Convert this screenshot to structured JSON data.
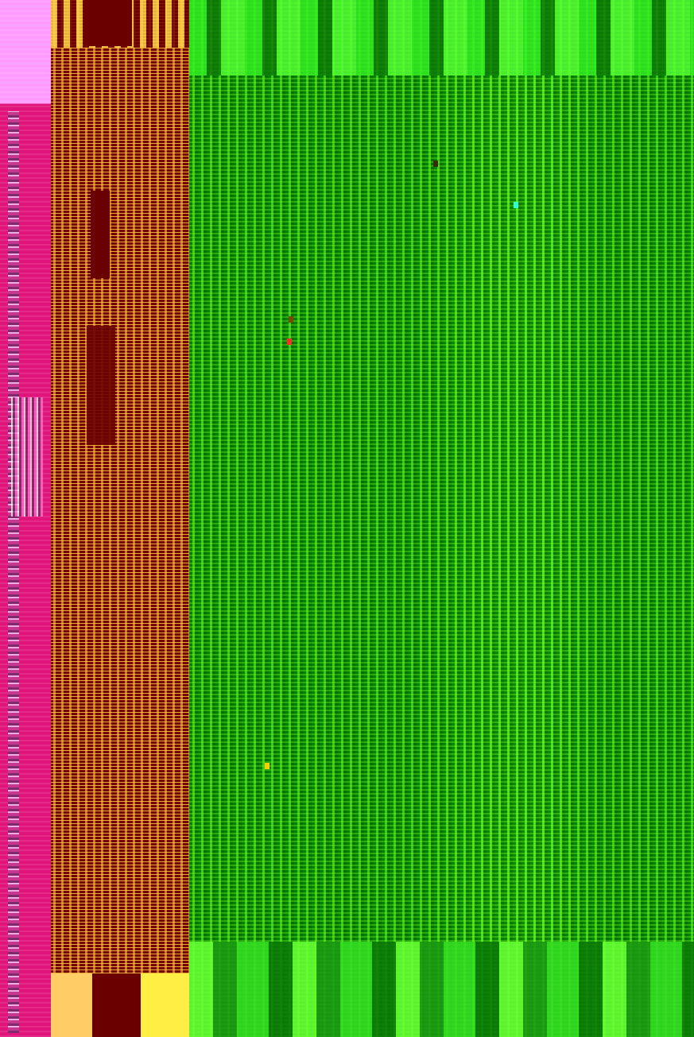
{
  "image": {
    "description_label": "",
    "palette": {
      "pink": "#ff99ff",
      "magenta": "#e0147a",
      "dark_red": "#6b0000",
      "orange": "#dc8c28",
      "yellow": "#ffd24a",
      "green_dark": "#168a0e",
      "green_light": "#74f02a"
    }
  }
}
